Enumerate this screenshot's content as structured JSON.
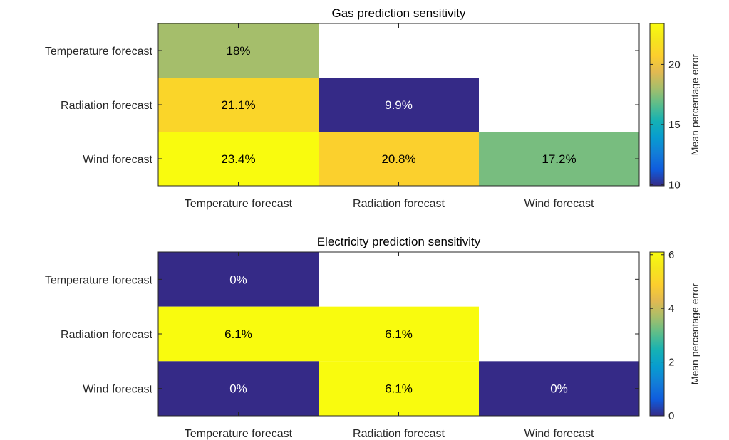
{
  "chart_data": [
    {
      "type": "heatmap",
      "title": "Gas prediction sensitivity",
      "x_categories": [
        "Temperature forecast",
        "Radiation forecast",
        "Wind forecast"
      ],
      "y_categories": [
        "Temperature forecast",
        "Radiation forecast",
        "Wind forecast"
      ],
      "cells": [
        {
          "row": 0,
          "col": 0,
          "value": 18.0,
          "label": "18%"
        },
        {
          "row": 1,
          "col": 0,
          "value": 21.1,
          "label": "21.1%"
        },
        {
          "row": 1,
          "col": 1,
          "value": 9.9,
          "label": "9.9%"
        },
        {
          "row": 2,
          "col": 0,
          "value": 23.4,
          "label": "23.4%"
        },
        {
          "row": 2,
          "col": 1,
          "value": 20.8,
          "label": "20.8%"
        },
        {
          "row": 2,
          "col": 2,
          "value": 17.2,
          "label": "17.2%"
        }
      ],
      "colorbar": {
        "label": "Mean percentage error",
        "range": [
          9.9,
          23.4
        ],
        "ticks": [
          10,
          15,
          20
        ],
        "tick_labels": [
          "10",
          "15",
          "20"
        ]
      }
    },
    {
      "type": "heatmap",
      "title": "Electricity prediction sensitivity",
      "x_categories": [
        "Temperature forecast",
        "Radiation forecast",
        "Wind forecast"
      ],
      "y_categories": [
        "Temperature forecast",
        "Radiation forecast",
        "Wind forecast"
      ],
      "cells": [
        {
          "row": 0,
          "col": 0,
          "value": 0,
          "label": "0%"
        },
        {
          "row": 1,
          "col": 0,
          "value": 6.1,
          "label": "6.1%"
        },
        {
          "row": 1,
          "col": 1,
          "value": 6.1,
          "label": "6.1%"
        },
        {
          "row": 2,
          "col": 0,
          "value": 0,
          "label": "0%"
        },
        {
          "row": 2,
          "col": 1,
          "value": 6.1,
          "label": "6.1%"
        },
        {
          "row": 2,
          "col": 2,
          "value": 0,
          "label": "0%"
        }
      ],
      "colorbar": {
        "label": "Mean percentage error",
        "range": [
          0,
          6.1
        ],
        "ticks": [
          0,
          2,
          4,
          6
        ],
        "tick_labels": [
          "0",
          "2",
          "4",
          "6"
        ]
      }
    }
  ]
}
